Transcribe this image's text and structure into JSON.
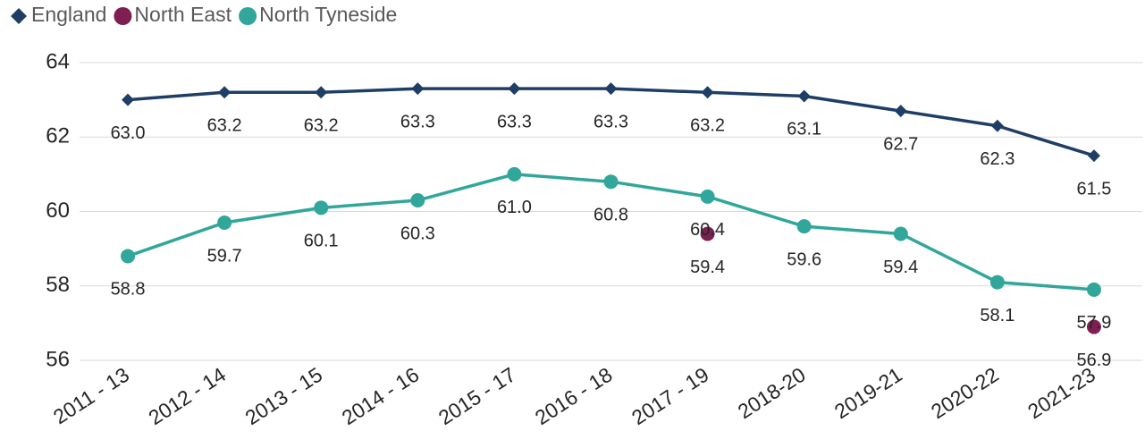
{
  "chart_data": {
    "type": "line",
    "categories": [
      "2011 - 13",
      "2012 - 14",
      "2013 - 15",
      "2014 - 16",
      "2015 - 17",
      "2016 - 18",
      "2017 - 19",
      "2018-20",
      "2019-21",
      "2020-22",
      "2021-23"
    ],
    "series": [
      {
        "name": "England",
        "color": "#1f3e66",
        "marker": "diamond",
        "line": true,
        "values": [
          63.0,
          63.2,
          63.2,
          63.3,
          63.3,
          63.3,
          63.2,
          63.1,
          62.7,
          62.3,
          61.5
        ],
        "value_labels": [
          "63.0",
          "63.2",
          "63.2",
          "63.3",
          "63.3",
          "63.3",
          "63.2",
          "63.1",
          "62.7",
          "62.3",
          "61.5"
        ]
      },
      {
        "name": "North East",
        "color": "#7d1f50",
        "marker": "circle",
        "line": false,
        "values": [
          null,
          null,
          null,
          null,
          null,
          null,
          59.4,
          null,
          null,
          null,
          56.9
        ],
        "value_labels": [
          null,
          null,
          null,
          null,
          null,
          null,
          "59.4",
          null,
          null,
          null,
          "56.9"
        ]
      },
      {
        "name": "North Tyneside",
        "color": "#31a69a",
        "marker": "circle",
        "line": true,
        "values": [
          58.8,
          59.7,
          60.1,
          60.3,
          61.0,
          60.8,
          60.4,
          59.6,
          59.4,
          58.1,
          57.9
        ],
        "value_labels": [
          "58.8",
          "59.7",
          "60.1",
          "60.3",
          "61.0",
          "60.8",
          "60.4",
          "59.6",
          "59.4",
          "58.1",
          "57.9"
        ]
      }
    ],
    "ylim": [
      56,
      64
    ],
    "yticks": [
      56,
      58,
      60,
      62,
      64
    ],
    "grid": true,
    "legend": "top-left"
  }
}
